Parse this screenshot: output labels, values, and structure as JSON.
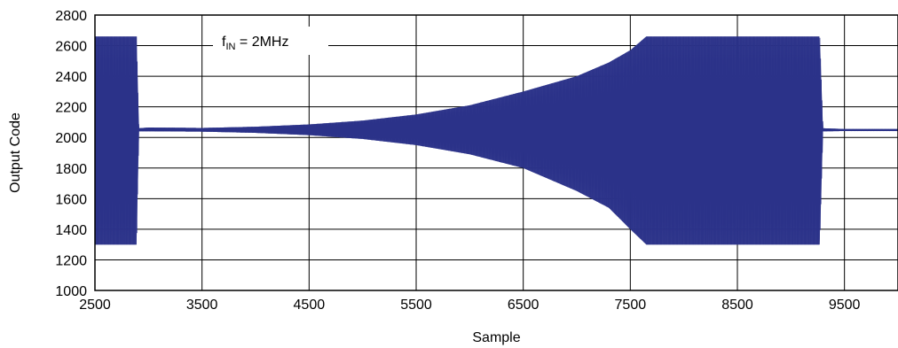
{
  "chart_data": {
    "type": "line",
    "title": "",
    "xlabel": "Sample",
    "ylabel": "Output Code",
    "xlim": [
      2500,
      10000
    ],
    "ylim": [
      1000,
      2800
    ],
    "x_ticks": [
      2500,
      3500,
      4500,
      5500,
      6500,
      7500,
      8500,
      9500
    ],
    "y_ticks": [
      1000,
      1200,
      1400,
      1600,
      1800,
      2000,
      2200,
      2400,
      2600,
      2800
    ],
    "grid": true,
    "line_color": "#2b3289",
    "annotation": {
      "base": "f",
      "sub": "IN",
      "rest": " = 2MHz"
    },
    "series": [
      {
        "envelope": {
          "x": [
            2500,
            2890,
            2910,
            3000,
            3500,
            4000,
            4500,
            5000,
            5500,
            6000,
            6500,
            7000,
            7300,
            7500,
            7650,
            9270,
            9300,
            9500,
            10000
          ],
          "upper": [
            2660,
            2660,
            2060,
            2065,
            2062,
            2070,
            2085,
            2110,
            2150,
            2210,
            2300,
            2400,
            2490,
            2570,
            2660,
            2660,
            2060,
            2055,
            2055
          ],
          "lower": [
            1300,
            1300,
            2040,
            2040,
            2038,
            2030,
            2015,
            1990,
            1950,
            1890,
            1800,
            1650,
            1540,
            1400,
            1300,
            1300,
            2040,
            2042,
            2042
          ]
        }
      }
    ]
  }
}
